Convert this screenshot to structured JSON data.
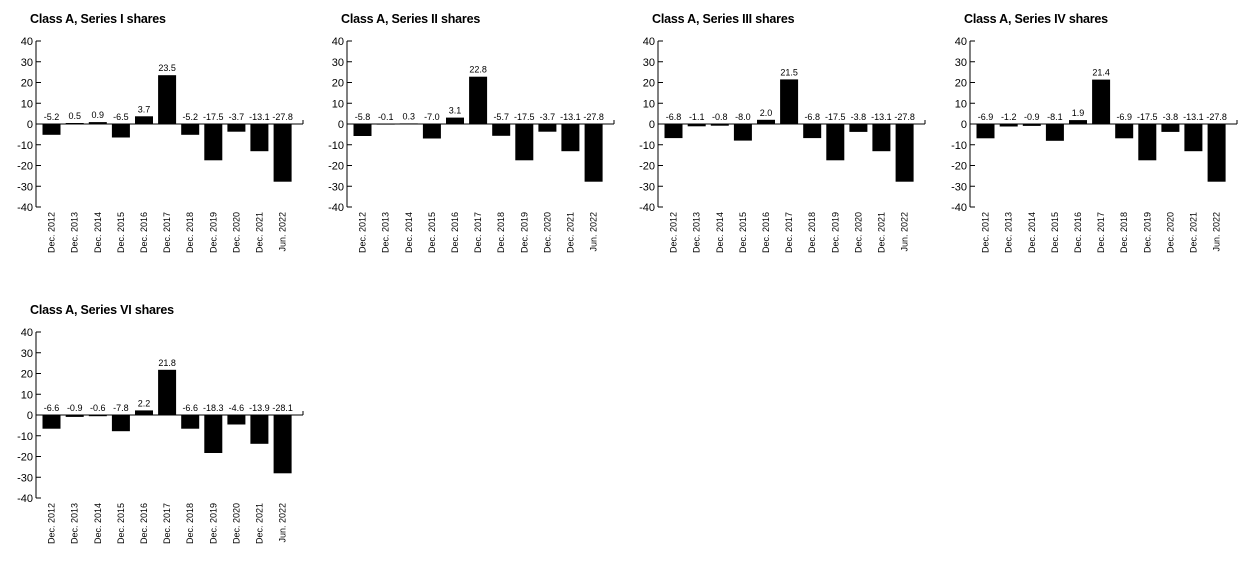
{
  "chart_data": [
    {
      "type": "bar",
      "title": "Class A, Series I shares",
      "categories": [
        "Dec. 2012",
        "Dec. 2013",
        "Dec. 2014",
        "Dec. 2015",
        "Dec. 2016",
        "Dec. 2017",
        "Dec. 2018",
        "Dec. 2019",
        "Dec. 2020",
        "Dec. 2021",
        "Jun. 2022"
      ],
      "values": [
        -5.2,
        0.5,
        0.9,
        -6.5,
        3.7,
        23.5,
        -5.2,
        -17.5,
        -3.7,
        -13.1,
        -27.8
      ],
      "ylim": [
        -40,
        40
      ],
      "yticks": [
        40,
        30,
        20,
        10,
        0,
        -10,
        -20,
        -30,
        -40
      ],
      "bar_color": "#000000"
    },
    {
      "type": "bar",
      "title": "Class A, Series II shares",
      "categories": [
        "Dec. 2012",
        "Dec. 2013",
        "Dec. 2014",
        "Dec. 2015",
        "Dec. 2016",
        "Dec. 2017",
        "Dec. 2018",
        "Dec. 2019",
        "Dec. 2020",
        "Dec. 2021",
        "Jun. 2022"
      ],
      "values": [
        -5.8,
        -0.1,
        0.3,
        -7.0,
        3.1,
        22.8,
        -5.7,
        -17.5,
        -3.7,
        -13.1,
        -27.8
      ],
      "ylim": [
        -40,
        40
      ],
      "yticks": [
        40,
        30,
        20,
        10,
        0,
        -10,
        -20,
        -30,
        -40
      ],
      "bar_color": "#000000"
    },
    {
      "type": "bar",
      "title": "Class A, Series III shares",
      "categories": [
        "Dec. 2012",
        "Dec. 2013",
        "Dec. 2014",
        "Dec. 2015",
        "Dec. 2016",
        "Dec. 2017",
        "Dec. 2018",
        "Dec. 2019",
        "Dec. 2020",
        "Dec. 2021",
        "Jun. 2022"
      ],
      "values": [
        -6.8,
        -1.1,
        -0.8,
        -8.0,
        2.0,
        21.5,
        -6.8,
        -17.5,
        -3.8,
        -13.1,
        -27.8
      ],
      "ylim": [
        -40,
        40
      ],
      "yticks": [
        40,
        30,
        20,
        10,
        0,
        -10,
        -20,
        -30,
        -40
      ],
      "bar_color": "#000000"
    },
    {
      "type": "bar",
      "title": "Class A, Series IV shares",
      "categories": [
        "Dec. 2012",
        "Dec. 2013",
        "Dec. 2014",
        "Dec. 2015",
        "Dec. 2016",
        "Dec. 2017",
        "Dec. 2018",
        "Dec. 2019",
        "Dec. 2020",
        "Dec. 2021",
        "Jun. 2022"
      ],
      "values": [
        -6.9,
        -1.2,
        -0.9,
        -8.1,
        1.9,
        21.4,
        -6.9,
        -17.5,
        -3.8,
        -13.1,
        -27.8
      ],
      "ylim": [
        -40,
        40
      ],
      "yticks": [
        40,
        30,
        20,
        10,
        0,
        -10,
        -20,
        -30,
        -40
      ],
      "bar_color": "#000000"
    },
    {
      "type": "bar",
      "title": "Class A, Series VI shares",
      "categories": [
        "Dec. 2012",
        "Dec. 2013",
        "Dec. 2014",
        "Dec. 2015",
        "Dec. 2016",
        "Dec. 2017",
        "Dec. 2018",
        "Dec. 2019",
        "Dec. 2020",
        "Dec. 2021",
        "Jun. 2022"
      ],
      "values": [
        -6.6,
        -0.9,
        -0.6,
        -7.8,
        2.2,
        21.8,
        -6.6,
        -18.3,
        -4.6,
        -13.9,
        -28.1
      ],
      "ylim": [
        -40,
        40
      ],
      "yticks": [
        40,
        30,
        20,
        10,
        0,
        -10,
        -20,
        -30,
        -40
      ],
      "bar_color": "#000000"
    }
  ]
}
